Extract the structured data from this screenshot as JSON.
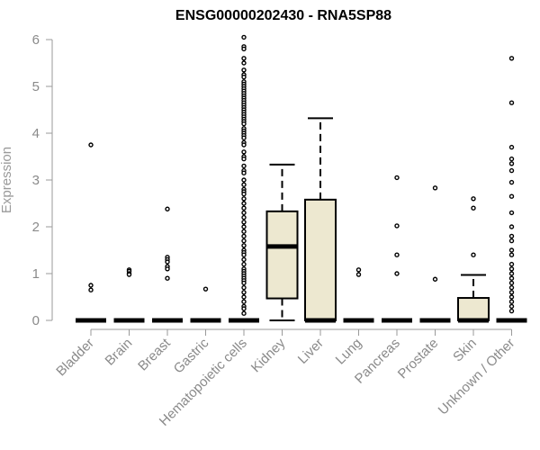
{
  "chart_data": {
    "type": "boxplot",
    "title": "ENSG00000202430 - RNA5SP88",
    "xlabel": "",
    "ylabel": "Expression",
    "ylim": [
      0,
      6
    ],
    "yticks": [
      0,
      1,
      2,
      3,
      4,
      5,
      6
    ],
    "grid": false,
    "box_color": "#ede8d0",
    "categories": [
      "Bladder",
      "Brain",
      "Breast",
      "Gastric",
      "Hematopoietic cells",
      "Kidney",
      "Liver",
      "Lung",
      "Pancreas",
      "Prostate",
      "Skin",
      "Unknown / Other"
    ],
    "boxes": [
      {
        "category": "Bladder",
        "q1": 0,
        "median": 0,
        "q3": 0,
        "whisker_low": 0,
        "whisker_high": 0,
        "outliers": [
          3.75,
          0.75,
          0.65
        ]
      },
      {
        "category": "Brain",
        "q1": 0,
        "median": 0,
        "q3": 0,
        "whisker_low": 0,
        "whisker_high": 0,
        "outliers": [
          1.08,
          1.05,
          1.0,
          0.98
        ]
      },
      {
        "category": "Breast",
        "q1": 0,
        "median": 0,
        "q3": 0,
        "whisker_low": 0,
        "whisker_high": 0,
        "outliers": [
          2.38,
          1.35,
          1.3,
          1.25,
          1.15,
          1.1,
          0.9
        ]
      },
      {
        "category": "Gastric",
        "q1": 0,
        "median": 0,
        "q3": 0,
        "whisker_low": 0,
        "whisker_high": 0,
        "outliers": [
          0.67
        ]
      },
      {
        "category": "Hematopoietic cells",
        "q1": 0,
        "median": 0,
        "q3": 0,
        "whisker_low": 0,
        "whisker_high": 0,
        "outliers": [
          6.05,
          5.85,
          5.8,
          5.6,
          5.5,
          5.35,
          5.25,
          5.2,
          5.1,
          5.05,
          5.0,
          4.95,
          4.9,
          4.85,
          4.8,
          4.75,
          4.7,
          4.65,
          4.6,
          4.55,
          4.5,
          4.45,
          4.4,
          4.35,
          4.3,
          4.25,
          4.2,
          4.1,
          4.05,
          4.0,
          3.95,
          3.9,
          3.8,
          3.75,
          3.6,
          3.5,
          3.45,
          3.3,
          3.2,
          3.15,
          3.0,
          2.9,
          2.8,
          2.75,
          2.7,
          2.6,
          2.5,
          2.4,
          2.3,
          2.2,
          2.1,
          2.0,
          1.9,
          1.8,
          1.7,
          1.6,
          1.5,
          1.45,
          1.4,
          1.3,
          1.2,
          1.1,
          1.05,
          1.0,
          0.95,
          0.9,
          0.85,
          0.8,
          0.7,
          0.6,
          0.5,
          0.4,
          0.3,
          0.25,
          0.15
        ]
      },
      {
        "category": "Kidney",
        "q1": 0.47,
        "median": 1.58,
        "q3": 2.33,
        "whisker_low": 0,
        "whisker_high": 3.33,
        "outliers": []
      },
      {
        "category": "Liver",
        "q1": 0,
        "median": 0,
        "q3": 2.58,
        "whisker_low": 0,
        "whisker_high": 4.32,
        "outliers": []
      },
      {
        "category": "Lung",
        "q1": 0,
        "median": 0,
        "q3": 0,
        "whisker_low": 0,
        "whisker_high": 0,
        "outliers": [
          1.08,
          0.98
        ]
      },
      {
        "category": "Pancreas",
        "q1": 0,
        "median": 0,
        "q3": 0,
        "whisker_low": 0,
        "whisker_high": 0,
        "outliers": [
          3.05,
          2.02,
          1.4,
          1.0
        ]
      },
      {
        "category": "Prostate",
        "q1": 0,
        "median": 0,
        "q3": 0,
        "whisker_low": 0,
        "whisker_high": 0,
        "outliers": [
          2.83,
          0.88
        ]
      },
      {
        "category": "Skin",
        "q1": 0,
        "median": 0,
        "q3": 0.48,
        "whisker_low": 0,
        "whisker_high": 0.97,
        "outliers": [
          2.6,
          2.4,
          1.4
        ]
      },
      {
        "category": "Unknown / Other",
        "q1": 0,
        "median": 0,
        "q3": 0,
        "whisker_low": 0,
        "whisker_high": 0,
        "outliers": [
          5.6,
          4.65,
          3.7,
          3.45,
          3.35,
          3.2,
          2.95,
          2.65,
          2.3,
          2.0,
          1.8,
          1.7,
          1.5,
          1.4,
          1.2,
          1.1,
          1.0,
          0.9,
          0.8,
          0.7,
          0.6,
          0.5,
          0.4,
          0.3,
          0.2
        ]
      }
    ]
  }
}
